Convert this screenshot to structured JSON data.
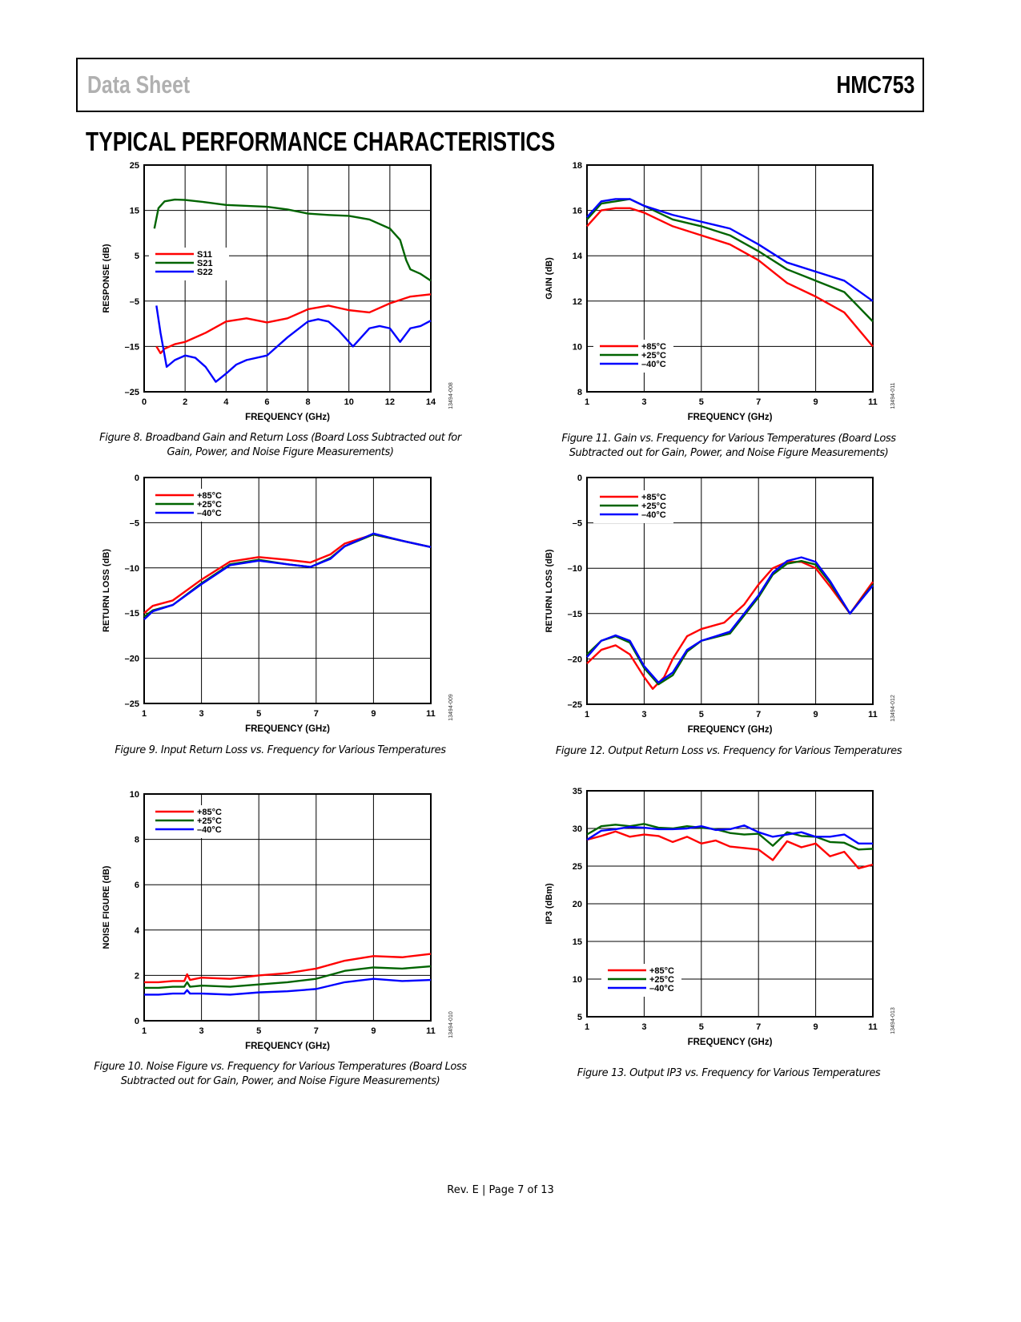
{
  "header": {
    "left": "Data Sheet",
    "right": "HMC753"
  },
  "section_title": "TYPICAL PERFORMANCE CHARACTERISTICS",
  "footer": "Rev. E | Page 7 of 13",
  "captions": [
    "Figure 8. Broadband Gain and Return Loss (Board Loss Subtracted out for Gain, Power, and Noise Figure Measurements)",
    "Figure 9. Input Return Loss vs. Frequency for Various Temperatures",
    "Figure 10. Noise Figure vs. Frequency for Various Temperatures (Board Loss Subtracted out for Gain, Power, and Noise Figure Measurements)",
    "Figure 11. Gain vs. Frequency for Various Temperatures (Board Loss Subtracted out for Gain, Power, and Noise Figure Measurements)",
    "Figure 12. Output Return Loss vs. Frequency for Various Temperatures",
    "Figure 13. Output IP3 vs. Frequency for Various Temperatures"
  ],
  "chart_data": [
    {
      "type": "line",
      "code": "13494-008",
      "xlabel": "FREQUENCY (GHz)",
      "ylabel": "RESPONSE (dB)",
      "xlim": [
        0,
        14
      ],
      "ylim": [
        -25,
        25
      ],
      "xticks": [
        0,
        2,
        4,
        6,
        8,
        10,
        12,
        14
      ],
      "yticks": [
        -25,
        -15,
        -5,
        5,
        15,
        25
      ],
      "ytick_labels": [
        "–25",
        "–15",
        "–5",
        "5",
        "15",
        "25"
      ],
      "grid": true,
      "legend": "left-middle",
      "series": [
        {
          "name": "S11",
          "color": "#ff0000",
          "x": [
            0.6,
            0.8,
            1,
            1.5,
            2,
            3,
            4,
            5,
            6,
            7,
            8,
            9,
            10,
            11,
            12,
            13,
            14
          ],
          "y": [
            -15,
            -16.5,
            -15.5,
            -14.5,
            -14,
            -12,
            -9.5,
            -8.8,
            -9.7,
            -8.8,
            -6.8,
            -6,
            -7,
            -7.5,
            -5.5,
            -4,
            -3.5
          ]
        },
        {
          "name": "S21",
          "color": "#006400",
          "x": [
            0.5,
            0.7,
            1,
            1.5,
            2,
            3,
            4,
            5,
            6,
            7,
            8,
            9,
            10,
            11,
            12,
            12.5,
            12.8,
            13,
            13.5,
            14
          ],
          "y": [
            11,
            15.5,
            17,
            17.4,
            17.3,
            16.8,
            16.2,
            16,
            15.8,
            15.2,
            14.3,
            14,
            13.8,
            13,
            11,
            8.5,
            4,
            2,
            1,
            -0.5
          ]
        },
        {
          "name": "S22",
          "color": "#0000ff",
          "x": [
            0.6,
            0.8,
            1.1,
            1.5,
            2,
            2.5,
            3,
            3.5,
            4,
            4.5,
            5,
            6,
            7,
            8,
            8.5,
            9,
            9.5,
            10.2,
            11,
            11.5,
            12,
            12.5,
            13,
            13.5,
            14
          ],
          "y": [
            -6,
            -12,
            -19.5,
            -18,
            -17,
            -17.5,
            -19.5,
            -22.8,
            -21,
            -19,
            -18,
            -17,
            -13,
            -9.5,
            -9,
            -9.5,
            -11.5,
            -15,
            -11,
            -10.5,
            -11,
            -14,
            -11,
            -10.5,
            -9.3
          ]
        }
      ]
    },
    {
      "type": "line",
      "code": "13494-009",
      "xlabel": "FREQUENCY (GHz)",
      "ylabel": "RETURN LOSS (dB)",
      "xlim": [
        1,
        11
      ],
      "ylim": [
        -25,
        0
      ],
      "xticks": [
        1,
        3,
        5,
        7,
        9,
        11
      ],
      "yticks": [
        -25,
        -20,
        -15,
        -10,
        -5,
        0
      ],
      "ytick_labels": [
        "–25",
        "–20",
        "–15",
        "–10",
        "–5",
        "0"
      ],
      "grid": true,
      "legend": "top-left",
      "series": [
        {
          "name": "+85°C",
          "color": "#ff0000",
          "x": [
            1,
            1.3,
            2,
            3,
            4,
            5,
            6,
            6.8,
            7.5,
            8,
            9,
            10,
            11
          ],
          "y": [
            -15,
            -14.2,
            -13.6,
            -11.3,
            -9.3,
            -8.8,
            -9.1,
            -9.4,
            -8.5,
            -7.3,
            -6.3,
            -7,
            -7.7
          ]
        },
        {
          "name": "+25°C",
          "color": "#006400",
          "x": [
            1,
            1.3,
            2,
            3,
            4,
            5,
            6,
            6.8,
            7.5,
            8,
            9,
            10,
            11
          ],
          "y": [
            -15.4,
            -14.7,
            -14.1,
            -11.7,
            -9.6,
            -9.1,
            -9.6,
            -9.9,
            -8.9,
            -7.6,
            -6.3,
            -7,
            -7.7
          ]
        },
        {
          "name": "–40°C",
          "color": "#0000ff",
          "x": [
            1,
            1.3,
            2,
            3,
            4,
            5,
            6,
            6.8,
            7.5,
            8,
            9,
            10,
            11
          ],
          "y": [
            -15.7,
            -14.8,
            -14.1,
            -11.8,
            -9.7,
            -9.2,
            -9.6,
            -9.9,
            -9,
            -7.6,
            -6.2,
            -7,
            -7.7
          ]
        }
      ]
    },
    {
      "type": "line",
      "code": "13494-010",
      "xlabel": "FREQUENCY (GHz)",
      "ylabel": "NOISE FIGURE (dB)",
      "xlim": [
        1,
        11
      ],
      "ylim": [
        0,
        10
      ],
      "xticks": [
        1,
        3,
        5,
        7,
        9,
        11
      ],
      "yticks": [
        0,
        2,
        4,
        6,
        8,
        10
      ],
      "ytick_labels": [
        "0",
        "2",
        "4",
        "6",
        "8",
        "10"
      ],
      "grid": true,
      "legend": "top-left",
      "series": [
        {
          "name": "+85°C",
          "color": "#ff0000",
          "x": [
            1,
            1.5,
            2,
            2.4,
            2.5,
            2.6,
            3,
            4,
            5,
            6,
            7,
            8,
            9,
            10,
            11
          ],
          "y": [
            1.7,
            1.7,
            1.75,
            1.75,
            2.05,
            1.8,
            1.9,
            1.85,
            2.0,
            2.1,
            2.3,
            2.65,
            2.85,
            2.8,
            2.95
          ]
        },
        {
          "name": "+25°C",
          "color": "#006400",
          "x": [
            1,
            1.5,
            2,
            2.4,
            2.5,
            2.6,
            3,
            4,
            5,
            6,
            7,
            8,
            9,
            10,
            11
          ],
          "y": [
            1.45,
            1.45,
            1.5,
            1.5,
            1.7,
            1.5,
            1.55,
            1.5,
            1.6,
            1.7,
            1.85,
            2.2,
            2.35,
            2.3,
            2.4
          ]
        },
        {
          "name": "–40°C",
          "color": "#0000ff",
          "x": [
            1,
            1.5,
            2,
            2.4,
            2.5,
            2.6,
            3,
            4,
            5,
            6,
            7,
            8,
            9,
            10,
            11
          ],
          "y": [
            1.15,
            1.15,
            1.2,
            1.2,
            1.35,
            1.2,
            1.2,
            1.15,
            1.25,
            1.3,
            1.4,
            1.7,
            1.85,
            1.75,
            1.8
          ]
        }
      ]
    },
    {
      "type": "line",
      "code": "13494-011",
      "xlabel": "FREQUENCY (GHz)",
      "ylabel": "GAIN (dB)",
      "xlim": [
        1,
        11
      ],
      "ylim": [
        8,
        18
      ],
      "xticks": [
        1,
        3,
        5,
        7,
        9,
        11
      ],
      "yticks": [
        8,
        10,
        12,
        14,
        16,
        18
      ],
      "ytick_labels": [
        "8",
        "10",
        "12",
        "14",
        "16",
        "18"
      ],
      "grid": true,
      "legend": "bottom-left",
      "series": [
        {
          "name": "+85°C",
          "color": "#ff0000",
          "x": [
            1,
            1.5,
            2,
            2.5,
            3,
            4,
            5,
            6,
            7,
            8,
            9,
            10,
            11
          ],
          "y": [
            15.3,
            16,
            16.1,
            16.1,
            15.9,
            15.3,
            14.9,
            14.5,
            13.8,
            12.8,
            12.2,
            11.5,
            10
          ]
        },
        {
          "name": "+25°C",
          "color": "#006400",
          "x": [
            1,
            1.5,
            2,
            2.5,
            3,
            4,
            5,
            6,
            7,
            8,
            9,
            10,
            11
          ],
          "y": [
            15.6,
            16.3,
            16.4,
            16.5,
            16.2,
            15.6,
            15.3,
            14.9,
            14.2,
            13.4,
            12.9,
            12.4,
            11.1
          ]
        },
        {
          "name": "–40°C",
          "color": "#0000ff",
          "x": [
            1,
            1.5,
            2,
            2.5,
            3,
            4,
            5,
            6,
            7,
            8,
            9,
            10,
            11
          ],
          "y": [
            15.7,
            16.4,
            16.5,
            16.5,
            16.2,
            15.8,
            15.5,
            15.2,
            14.5,
            13.7,
            13.3,
            12.9,
            12
          ]
        }
      ]
    },
    {
      "type": "line",
      "code": "13494-012",
      "xlabel": "FREQUENCY (GHz)",
      "ylabel": "RETURN LOSS (dB)",
      "xlim": [
        1,
        11
      ],
      "ylim": [
        -25,
        0
      ],
      "xticks": [
        1,
        3,
        5,
        7,
        9,
        11
      ],
      "yticks": [
        -25,
        -20,
        -15,
        -10,
        -5,
        0
      ],
      "ytick_labels": [
        "–25",
        "–20",
        "–15",
        "–10",
        "–5",
        "0"
      ],
      "grid": true,
      "legend": "top-left",
      "series": [
        {
          "name": "+85°C",
          "color": "#ff0000",
          "x": [
            1,
            1.5,
            2,
            2.5,
            3,
            3.3,
            3.7,
            4,
            4.5,
            5,
            5.8,
            6.5,
            7,
            7.5,
            8,
            8.5,
            9,
            9.5,
            10.2,
            11
          ],
          "y": [
            -20.5,
            -19,
            -18.5,
            -19.5,
            -22,
            -23.3,
            -22,
            -20,
            -17.5,
            -16.7,
            -16,
            -14,
            -11.8,
            -10,
            -9.3,
            -9.3,
            -10,
            -12,
            -15,
            -11.5
          ]
        },
        {
          "name": "+25°C",
          "color": "#006400",
          "x": [
            1,
            1.5,
            2,
            2.5,
            3,
            3.5,
            4,
            4.5,
            5,
            6,
            7,
            7.5,
            8,
            8.5,
            9,
            9.5,
            10.2,
            11
          ],
          "y": [
            -19.5,
            -18,
            -17.5,
            -18.2,
            -21,
            -22.8,
            -21.8,
            -19.2,
            -18,
            -17.2,
            -13.2,
            -10.7,
            -9.5,
            -9.2,
            -9.6,
            -11.6,
            -15,
            -11.8
          ]
        },
        {
          "name": "–40°C",
          "color": "#0000ff",
          "x": [
            1,
            1.5,
            2,
            2.5,
            3,
            3.5,
            4,
            4.5,
            5,
            6,
            7,
            7.5,
            8,
            8.5,
            9,
            9.5,
            10.2,
            11
          ],
          "y": [
            -19.8,
            -18,
            -17.4,
            -18,
            -20.8,
            -22.6,
            -21.5,
            -19,
            -18,
            -17,
            -13,
            -10.5,
            -9.2,
            -8.8,
            -9.3,
            -11.4,
            -15,
            -11.9
          ]
        }
      ]
    },
    {
      "type": "line",
      "code": "13494-013",
      "xlabel": "FREQUENCY (GHz)",
      "ylabel": "IP3 (dBm)",
      "xlim": [
        1,
        11
      ],
      "ylim": [
        5,
        35
      ],
      "xticks": [
        1,
        3,
        5,
        7,
        9,
        11
      ],
      "yticks": [
        5,
        10,
        15,
        20,
        25,
        30,
        35
      ],
      "ytick_labels": [
        "5",
        "10",
        "15",
        "20",
        "25",
        "30",
        "35"
      ],
      "grid": true,
      "legend": "bottom-left",
      "series": [
        {
          "name": "+85°C",
          "color": "#ff0000",
          "x": [
            1,
            1.5,
            2,
            2.5,
            3,
            3.5,
            4,
            4.5,
            5,
            5.5,
            6,
            6.5,
            7,
            7.5,
            8,
            8.5,
            9,
            9.5,
            10,
            10.5,
            11
          ],
          "y": [
            28.5,
            29,
            29.6,
            28.9,
            29.2,
            29,
            28.2,
            28.9,
            28,
            28.4,
            27.6,
            27.4,
            27.2,
            25.8,
            28.3,
            27.5,
            28,
            26.3,
            26.9,
            24.7,
            25.2
          ]
        },
        {
          "name": "+25°C",
          "color": "#006400",
          "x": [
            1,
            1.5,
            2,
            2.5,
            3,
            3.5,
            4,
            4.5,
            5,
            5.5,
            6,
            6.5,
            7,
            7.5,
            8,
            8.5,
            9,
            9.5,
            10,
            10.5,
            11
          ],
          "y": [
            29.2,
            30.3,
            30.5,
            30.3,
            30.6,
            30.1,
            30,
            30.3,
            30.1,
            29.9,
            29.4,
            29.2,
            29.3,
            27.7,
            29.5,
            29,
            28.9,
            28.2,
            28.1,
            27.2,
            27.3
          ]
        },
        {
          "name": "–40°C",
          "color": "#0000ff",
          "x": [
            1,
            1.5,
            2,
            2.5,
            3,
            3.5,
            4,
            4.5,
            5,
            5.5,
            6,
            6.5,
            7,
            7.5,
            8,
            8.5,
            9,
            9.5,
            10,
            10.5,
            11
          ],
          "y": [
            28.5,
            29.7,
            29.9,
            30.2,
            30.1,
            29.9,
            29.9,
            30,
            30.3,
            29.8,
            29.9,
            30.4,
            29.5,
            28.9,
            29.2,
            29.5,
            28.9,
            28.9,
            29.2,
            28,
            28
          ]
        }
      ]
    }
  ]
}
